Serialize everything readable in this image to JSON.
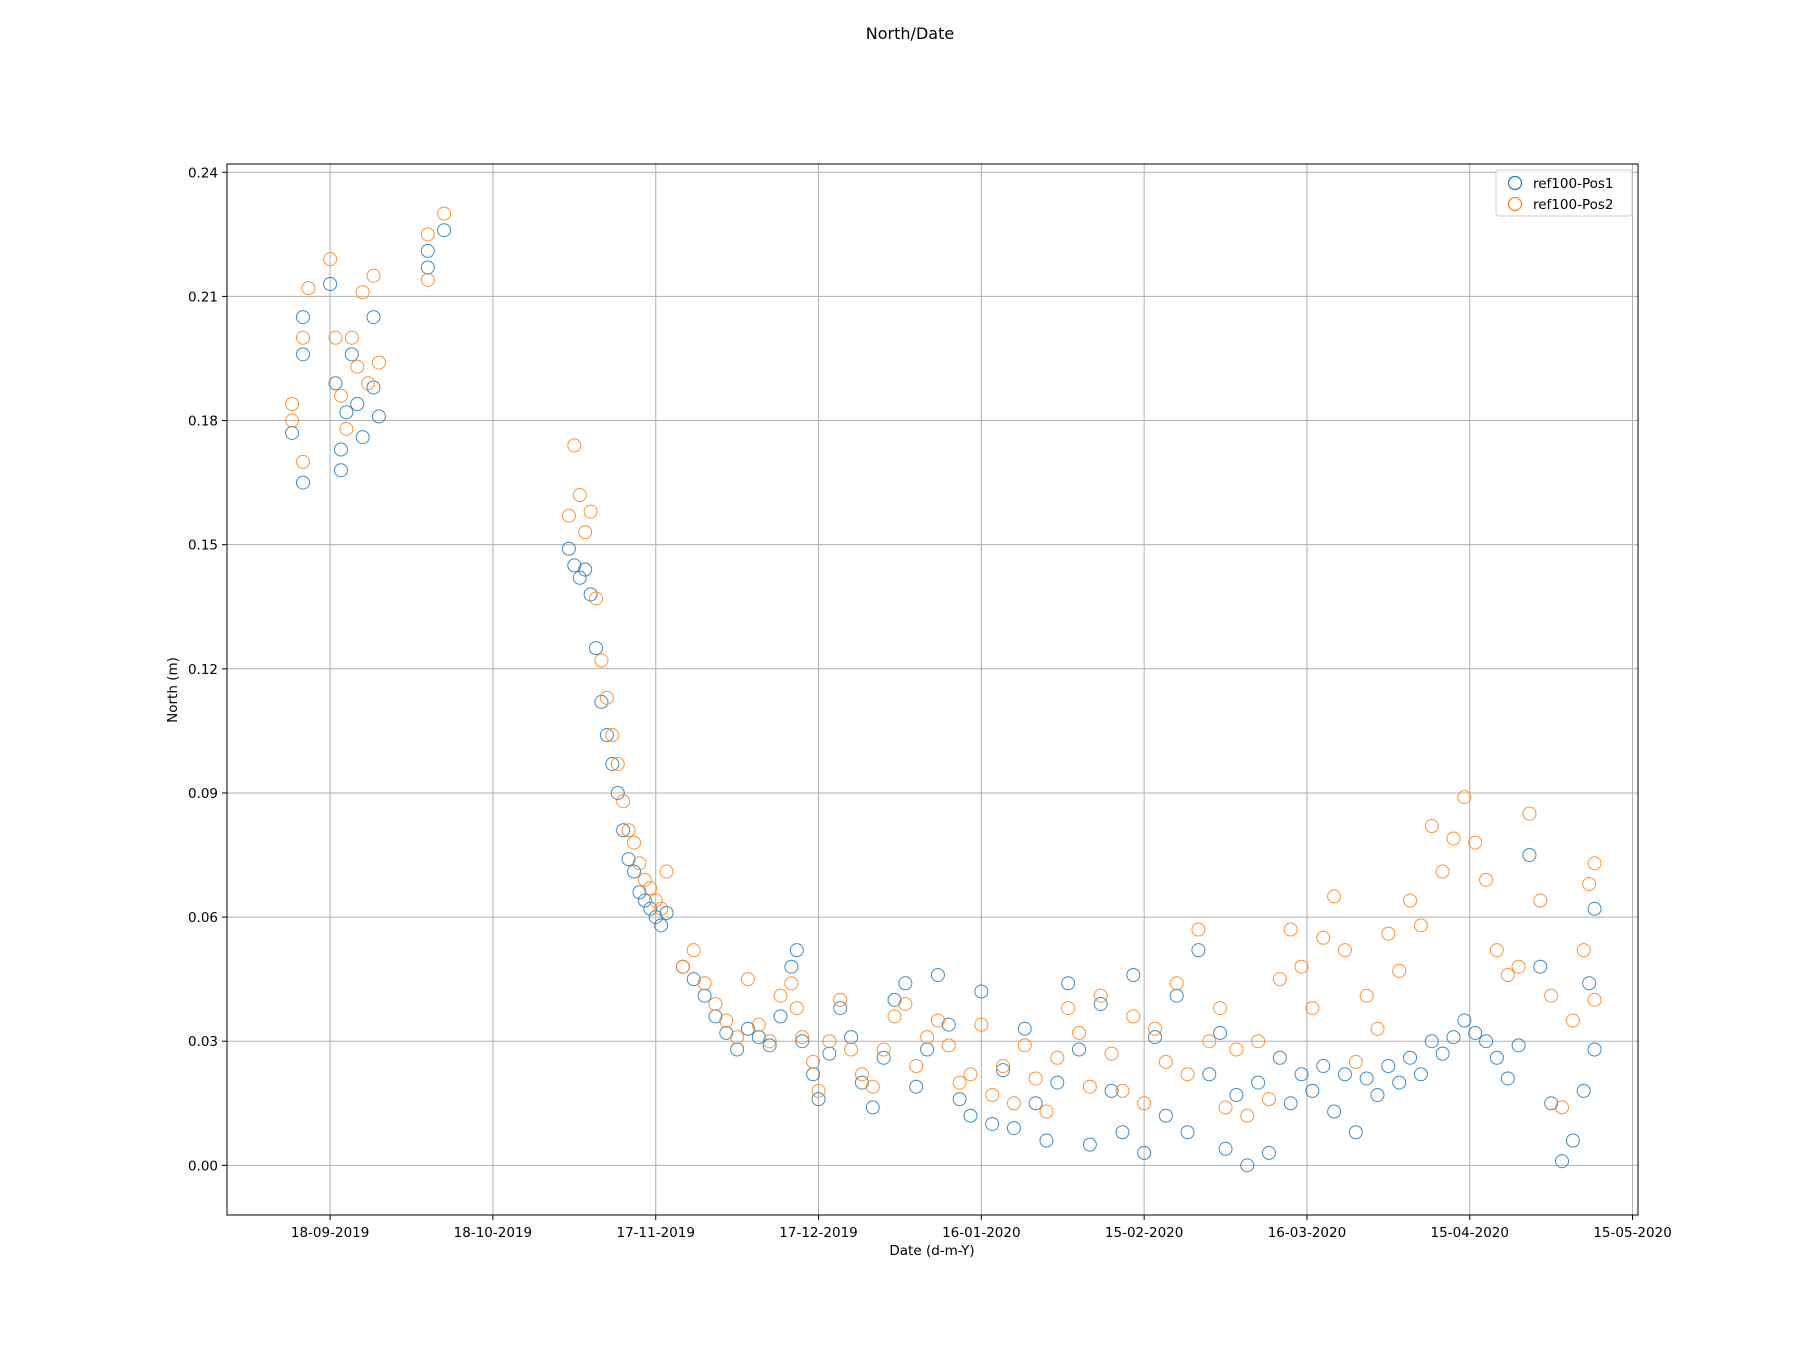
{
  "chart_data": {
    "type": "scatter",
    "title": "North/Date",
    "xlabel": "Date (d-m-Y)",
    "ylabel": "North (m)",
    "x_type": "date",
    "xlim": [
      "2019-08-30",
      "2020-05-16"
    ],
    "ylim": [
      -0.012,
      0.242
    ],
    "x_ticks": [
      "2019-09-18",
      "2019-10-18",
      "2019-11-17",
      "2019-12-17",
      "2020-01-16",
      "2020-02-15",
      "2020-03-16",
      "2020-04-15",
      "2020-05-15"
    ],
    "x_tick_labels": [
      "18-09-2019",
      "18-10-2019",
      "17-11-2019",
      "17-12-2019",
      "16-01-2020",
      "15-02-2020",
      "16-03-2020",
      "15-04-2020",
      "15-05-2020"
    ],
    "y_ticks": [
      0.0,
      0.03,
      0.06,
      0.09,
      0.12,
      0.15,
      0.18,
      0.21,
      0.24
    ],
    "y_tick_labels": [
      "0.00",
      "0.03",
      "0.06",
      "0.09",
      "0.12",
      "0.15",
      "0.18",
      "0.21",
      "0.24"
    ],
    "grid": true,
    "legend_position": "top-right",
    "marker": "hollow-circle",
    "series": [
      {
        "name": "ref100-Pos1",
        "color": "#1f77b4",
        "points": [
          [
            "2019-09-11",
            0.177
          ],
          [
            "2019-09-13",
            0.196
          ],
          [
            "2019-09-13",
            0.165
          ],
          [
            "2019-09-13",
            0.205
          ],
          [
            "2019-09-18",
            0.213
          ],
          [
            "2019-09-19",
            0.189
          ],
          [
            "2019-09-20",
            0.173
          ],
          [
            "2019-09-20",
            0.168
          ],
          [
            "2019-09-21",
            0.182
          ],
          [
            "2019-09-22",
            0.196
          ],
          [
            "2019-09-23",
            0.184
          ],
          [
            "2019-09-24",
            0.176
          ],
          [
            "2019-09-26",
            0.188
          ],
          [
            "2019-09-26",
            0.205
          ],
          [
            "2019-09-27",
            0.181
          ],
          [
            "2019-10-06",
            0.217
          ],
          [
            "2019-10-06",
            0.221
          ],
          [
            "2019-10-09",
            0.226
          ],
          [
            "2019-11-01",
            0.149
          ],
          [
            "2019-11-02",
            0.145
          ],
          [
            "2019-11-03",
            0.142
          ],
          [
            "2019-11-04",
            0.144
          ],
          [
            "2019-11-05",
            0.138
          ],
          [
            "2019-11-06",
            0.125
          ],
          [
            "2019-11-07",
            0.112
          ],
          [
            "2019-11-08",
            0.104
          ],
          [
            "2019-11-09",
            0.097
          ],
          [
            "2019-11-10",
            0.09
          ],
          [
            "2019-11-11",
            0.081
          ],
          [
            "2019-11-12",
            0.074
          ],
          [
            "2019-11-13",
            0.071
          ],
          [
            "2019-11-14",
            0.066
          ],
          [
            "2019-11-15",
            0.064
          ],
          [
            "2019-11-16",
            0.062
          ],
          [
            "2019-11-17",
            0.06
          ],
          [
            "2019-11-18",
            0.058
          ],
          [
            "2019-11-19",
            0.061
          ],
          [
            "2019-11-22",
            0.048
          ],
          [
            "2019-11-24",
            0.045
          ],
          [
            "2019-11-26",
            0.041
          ],
          [
            "2019-11-28",
            0.036
          ],
          [
            "2019-11-30",
            0.032
          ],
          [
            "2019-12-02",
            0.028
          ],
          [
            "2019-12-04",
            0.033
          ],
          [
            "2019-12-06",
            0.031
          ],
          [
            "2019-12-08",
            0.029
          ],
          [
            "2019-12-10",
            0.036
          ],
          [
            "2019-12-12",
            0.048
          ],
          [
            "2019-12-13",
            0.052
          ],
          [
            "2019-12-14",
            0.03
          ],
          [
            "2019-12-16",
            0.022
          ],
          [
            "2019-12-17",
            0.016
          ],
          [
            "2019-12-19",
            0.027
          ],
          [
            "2019-12-21",
            0.038
          ],
          [
            "2019-12-23",
            0.031
          ],
          [
            "2019-12-25",
            0.02
          ],
          [
            "2019-12-27",
            0.014
          ],
          [
            "2019-12-29",
            0.026
          ],
          [
            "2019-12-31",
            0.04
          ],
          [
            "2020-01-02",
            0.044
          ],
          [
            "2020-01-04",
            0.019
          ],
          [
            "2020-01-06",
            0.028
          ],
          [
            "2020-01-08",
            0.046
          ],
          [
            "2020-01-10",
            0.034
          ],
          [
            "2020-01-12",
            0.016
          ],
          [
            "2020-01-14",
            0.012
          ],
          [
            "2020-01-16",
            0.042
          ],
          [
            "2020-01-18",
            0.01
          ],
          [
            "2020-01-20",
            0.023
          ],
          [
            "2020-01-22",
            0.009
          ],
          [
            "2020-01-24",
            0.033
          ],
          [
            "2020-01-26",
            0.015
          ],
          [
            "2020-01-28",
            0.006
          ],
          [
            "2020-01-30",
            0.02
          ],
          [
            "2020-02-01",
            0.044
          ],
          [
            "2020-02-03",
            0.028
          ],
          [
            "2020-02-05",
            0.005
          ],
          [
            "2020-02-07",
            0.039
          ],
          [
            "2020-02-09",
            0.018
          ],
          [
            "2020-02-11",
            0.008
          ],
          [
            "2020-02-13",
            0.046
          ],
          [
            "2020-02-15",
            0.003
          ],
          [
            "2020-02-17",
            0.031
          ],
          [
            "2020-02-19",
            0.012
          ],
          [
            "2020-02-21",
            0.041
          ],
          [
            "2020-02-23",
            0.008
          ],
          [
            "2020-02-25",
            0.052
          ],
          [
            "2020-02-27",
            0.022
          ],
          [
            "2020-02-29",
            0.032
          ],
          [
            "2020-03-01",
            0.004
          ],
          [
            "2020-03-03",
            0.017
          ],
          [
            "2020-03-05",
            0.0
          ],
          [
            "2020-03-07",
            0.02
          ],
          [
            "2020-03-09",
            0.003
          ],
          [
            "2020-03-11",
            0.026
          ],
          [
            "2020-03-13",
            0.015
          ],
          [
            "2020-03-15",
            0.022
          ],
          [
            "2020-03-17",
            0.018
          ],
          [
            "2020-03-19",
            0.024
          ],
          [
            "2020-03-21",
            0.013
          ],
          [
            "2020-03-23",
            0.022
          ],
          [
            "2020-03-25",
            0.008
          ],
          [
            "2020-03-27",
            0.021
          ],
          [
            "2020-03-29",
            0.017
          ],
          [
            "2020-03-31",
            0.024
          ],
          [
            "2020-04-02",
            0.02
          ],
          [
            "2020-04-04",
            0.026
          ],
          [
            "2020-04-06",
            0.022
          ],
          [
            "2020-04-08",
            0.03
          ],
          [
            "2020-04-10",
            0.027
          ],
          [
            "2020-04-12",
            0.031
          ],
          [
            "2020-04-14",
            0.035
          ],
          [
            "2020-04-16",
            0.032
          ],
          [
            "2020-04-18",
            0.03
          ],
          [
            "2020-04-20",
            0.026
          ],
          [
            "2020-04-22",
            0.021
          ],
          [
            "2020-04-24",
            0.029
          ],
          [
            "2020-04-26",
            0.075
          ],
          [
            "2020-04-28",
            0.048
          ],
          [
            "2020-04-30",
            0.015
          ],
          [
            "2020-05-02",
            0.001
          ],
          [
            "2020-05-04",
            0.006
          ],
          [
            "2020-05-06",
            0.018
          ],
          [
            "2020-05-07",
            0.044
          ],
          [
            "2020-05-08",
            0.062
          ],
          [
            "2020-05-08",
            0.028
          ]
        ]
      },
      {
        "name": "ref100-Pos2",
        "color": "#ff7f0e",
        "points": [
          [
            "2019-09-11",
            0.184
          ],
          [
            "2019-09-11",
            0.18
          ],
          [
            "2019-09-13",
            0.2
          ],
          [
            "2019-09-13",
            0.17
          ],
          [
            "2019-09-14",
            0.212
          ],
          [
            "2019-09-18",
            0.219
          ],
          [
            "2019-09-19",
            0.2
          ],
          [
            "2019-09-20",
            0.186
          ],
          [
            "2019-09-21",
            0.178
          ],
          [
            "2019-09-22",
            0.2
          ],
          [
            "2019-09-23",
            0.193
          ],
          [
            "2019-09-24",
            0.211
          ],
          [
            "2019-09-25",
            0.189
          ],
          [
            "2019-09-26",
            0.215
          ],
          [
            "2019-09-27",
            0.194
          ],
          [
            "2019-10-06",
            0.225
          ],
          [
            "2019-10-06",
            0.214
          ],
          [
            "2019-10-09",
            0.23
          ],
          [
            "2019-11-01",
            0.157
          ],
          [
            "2019-11-02",
            0.174
          ],
          [
            "2019-11-03",
            0.162
          ],
          [
            "2019-11-04",
            0.153
          ],
          [
            "2019-11-05",
            0.158
          ],
          [
            "2019-11-06",
            0.137
          ],
          [
            "2019-11-07",
            0.122
          ],
          [
            "2019-11-08",
            0.113
          ],
          [
            "2019-11-09",
            0.104
          ],
          [
            "2019-11-10",
            0.097
          ],
          [
            "2019-11-11",
            0.088
          ],
          [
            "2019-11-12",
            0.081
          ],
          [
            "2019-11-13",
            0.078
          ],
          [
            "2019-11-14",
            0.073
          ],
          [
            "2019-11-15",
            0.069
          ],
          [
            "2019-11-16",
            0.067
          ],
          [
            "2019-11-17",
            0.064
          ],
          [
            "2019-11-18",
            0.062
          ],
          [
            "2019-11-19",
            0.071
          ],
          [
            "2019-11-22",
            0.048
          ],
          [
            "2019-11-24",
            0.052
          ],
          [
            "2019-11-26",
            0.044
          ],
          [
            "2019-11-28",
            0.039
          ],
          [
            "2019-11-30",
            0.035
          ],
          [
            "2019-12-02",
            0.031
          ],
          [
            "2019-12-04",
            0.045
          ],
          [
            "2019-12-06",
            0.034
          ],
          [
            "2019-12-08",
            0.03
          ],
          [
            "2019-12-10",
            0.041
          ],
          [
            "2019-12-12",
            0.044
          ],
          [
            "2019-12-13",
            0.038
          ],
          [
            "2019-12-14",
            0.031
          ],
          [
            "2019-12-16",
            0.025
          ],
          [
            "2019-12-17",
            0.018
          ],
          [
            "2019-12-19",
            0.03
          ],
          [
            "2019-12-21",
            0.04
          ],
          [
            "2019-12-23",
            0.028
          ],
          [
            "2019-12-25",
            0.022
          ],
          [
            "2019-12-27",
            0.019
          ],
          [
            "2019-12-29",
            0.028
          ],
          [
            "2019-12-31",
            0.036
          ],
          [
            "2020-01-02",
            0.039
          ],
          [
            "2020-01-04",
            0.024
          ],
          [
            "2020-01-06",
            0.031
          ],
          [
            "2020-01-08",
            0.035
          ],
          [
            "2020-01-10",
            0.029
          ],
          [
            "2020-01-12",
            0.02
          ],
          [
            "2020-01-14",
            0.022
          ],
          [
            "2020-01-16",
            0.034
          ],
          [
            "2020-01-18",
            0.017
          ],
          [
            "2020-01-20",
            0.024
          ],
          [
            "2020-01-22",
            0.015
          ],
          [
            "2020-01-24",
            0.029
          ],
          [
            "2020-01-26",
            0.021
          ],
          [
            "2020-01-28",
            0.013
          ],
          [
            "2020-01-30",
            0.026
          ],
          [
            "2020-02-01",
            0.038
          ],
          [
            "2020-02-03",
            0.032
          ],
          [
            "2020-02-05",
            0.019
          ],
          [
            "2020-02-07",
            0.041
          ],
          [
            "2020-02-09",
            0.027
          ],
          [
            "2020-02-11",
            0.018
          ],
          [
            "2020-02-13",
            0.036
          ],
          [
            "2020-02-15",
            0.015
          ],
          [
            "2020-02-17",
            0.033
          ],
          [
            "2020-02-19",
            0.025
          ],
          [
            "2020-02-21",
            0.044
          ],
          [
            "2020-02-23",
            0.022
          ],
          [
            "2020-02-25",
            0.057
          ],
          [
            "2020-02-27",
            0.03
          ],
          [
            "2020-02-29",
            0.038
          ],
          [
            "2020-03-01",
            0.014
          ],
          [
            "2020-03-03",
            0.028
          ],
          [
            "2020-03-05",
            0.012
          ],
          [
            "2020-03-07",
            0.03
          ],
          [
            "2020-03-09",
            0.016
          ],
          [
            "2020-03-11",
            0.045
          ],
          [
            "2020-03-13",
            0.057
          ],
          [
            "2020-03-15",
            0.048
          ],
          [
            "2020-03-17",
            0.038
          ],
          [
            "2020-03-19",
            0.055
          ],
          [
            "2020-03-21",
            0.065
          ],
          [
            "2020-03-23",
            0.052
          ],
          [
            "2020-03-25",
            0.025
          ],
          [
            "2020-03-27",
            0.041
          ],
          [
            "2020-03-29",
            0.033
          ],
          [
            "2020-03-31",
            0.056
          ],
          [
            "2020-04-02",
            0.047
          ],
          [
            "2020-04-04",
            0.064
          ],
          [
            "2020-04-06",
            0.058
          ],
          [
            "2020-04-08",
            0.082
          ],
          [
            "2020-04-10",
            0.071
          ],
          [
            "2020-04-12",
            0.079
          ],
          [
            "2020-04-14",
            0.089
          ],
          [
            "2020-04-16",
            0.078
          ],
          [
            "2020-04-18",
            0.069
          ],
          [
            "2020-04-20",
            0.052
          ],
          [
            "2020-04-22",
            0.046
          ],
          [
            "2020-04-24",
            0.048
          ],
          [
            "2020-04-26",
            0.085
          ],
          [
            "2020-04-28",
            0.064
          ],
          [
            "2020-04-30",
            0.041
          ],
          [
            "2020-05-02",
            0.014
          ],
          [
            "2020-05-04",
            0.035
          ],
          [
            "2020-05-06",
            0.052
          ],
          [
            "2020-05-07",
            0.068
          ],
          [
            "2020-05-08",
            0.073
          ],
          [
            "2020-05-08",
            0.04
          ]
        ]
      }
    ]
  }
}
